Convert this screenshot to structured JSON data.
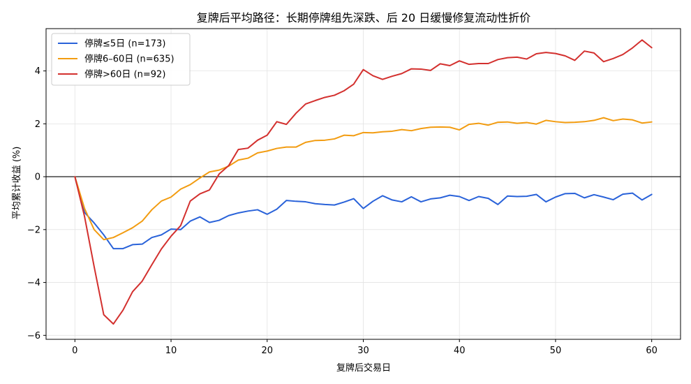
{
  "chart_data": {
    "type": "line",
    "title": "复牌后平均路径：长期停牌组先深跌、后 20 日缓慢修复流动性折价",
    "xlabel": "复牌后交易日",
    "ylabel": "平均累计收益 (%)",
    "xlim": [
      -3,
      63
    ],
    "ylim": [
      -6.15,
      5.6
    ],
    "xticks": [
      0,
      10,
      20,
      30,
      40,
      50,
      60
    ],
    "yticks": [
      -6,
      -4,
      -2,
      0,
      2,
      4
    ],
    "ytick_labels": [
      "−6",
      "−4",
      "−2",
      "0",
      "2",
      "4"
    ],
    "grid": true,
    "legend": "upper-left",
    "x": [
      0,
      1,
      2,
      3,
      4,
      5,
      6,
      7,
      8,
      9,
      10,
      11,
      12,
      13,
      14,
      15,
      16,
      17,
      18,
      19,
      20,
      21,
      22,
      23,
      24,
      25,
      26,
      27,
      28,
      29,
      30,
      31,
      32,
      33,
      34,
      35,
      36,
      37,
      38,
      39,
      40,
      41,
      42,
      43,
      44,
      45,
      46,
      47,
      48,
      49,
      50,
      51,
      52,
      53,
      54,
      55,
      56,
      57,
      58,
      59,
      60
    ],
    "series": [
      {
        "name": "停牌≤5日 (n=173)",
        "color": "#2962d9",
        "values": [
          0,
          -1.35,
          -1.75,
          -2.2,
          -2.72,
          -2.72,
          -2.57,
          -2.55,
          -2.3,
          -2.2,
          -1.98,
          -2.0,
          -1.68,
          -1.52,
          -1.73,
          -1.65,
          -1.47,
          -1.37,
          -1.3,
          -1.25,
          -1.42,
          -1.23,
          -0.9,
          -0.93,
          -0.95,
          -1.02,
          -1.05,
          -1.07,
          -0.96,
          -0.83,
          -1.2,
          -0.93,
          -0.72,
          -0.88,
          -0.95,
          -0.76,
          -0.95,
          -0.84,
          -0.8,
          -0.7,
          -0.75,
          -0.9,
          -0.75,
          -0.82,
          -1.05,
          -0.73,
          -0.75,
          -0.74,
          -0.67,
          -0.95,
          -0.77,
          -0.64,
          -0.63,
          -0.8,
          -0.68,
          -0.77,
          -0.87,
          -0.66,
          -0.62,
          -0.88,
          -0.67
        ]
      },
      {
        "name": "停牌6–60日 (n=635)",
        "color": "#f29c11",
        "values": [
          0,
          -1.2,
          -2.0,
          -2.38,
          -2.3,
          -2.12,
          -1.93,
          -1.68,
          -1.25,
          -0.92,
          -0.77,
          -0.47,
          -0.3,
          -0.05,
          0.18,
          0.25,
          0.4,
          0.63,
          0.7,
          0.9,
          0.97,
          1.07,
          1.12,
          1.12,
          1.3,
          1.37,
          1.38,
          1.43,
          1.57,
          1.55,
          1.67,
          1.66,
          1.7,
          1.72,
          1.78,
          1.74,
          1.82,
          1.87,
          1.88,
          1.87,
          1.77,
          1.98,
          2.02,
          1.95,
          2.06,
          2.07,
          2.02,
          2.05,
          1.99,
          2.13,
          2.08,
          2.05,
          2.06,
          2.08,
          2.13,
          2.23,
          2.12,
          2.18,
          2.15,
          2.03,
          2.07
        ]
      },
      {
        "name": "停牌>60日 (n=92)",
        "color": "#d3302e",
        "values": [
          0,
          -1.5,
          -3.4,
          -5.22,
          -5.57,
          -5.05,
          -4.35,
          -3.95,
          -3.33,
          -2.73,
          -2.25,
          -1.85,
          -0.92,
          -0.65,
          -0.5,
          0.1,
          0.42,
          1.03,
          1.08,
          1.38,
          1.57,
          2.08,
          1.98,
          2.4,
          2.75,
          2.88,
          3.0,
          3.08,
          3.25,
          3.5,
          4.05,
          3.82,
          3.68,
          3.8,
          3.9,
          4.08,
          4.07,
          4.02,
          4.27,
          4.2,
          4.38,
          4.25,
          4.28,
          4.28,
          4.43,
          4.5,
          4.52,
          4.45,
          4.65,
          4.7,
          4.66,
          4.57,
          4.4,
          4.75,
          4.68,
          4.35,
          4.47,
          4.62,
          4.87,
          5.17,
          4.88
        ]
      }
    ]
  }
}
